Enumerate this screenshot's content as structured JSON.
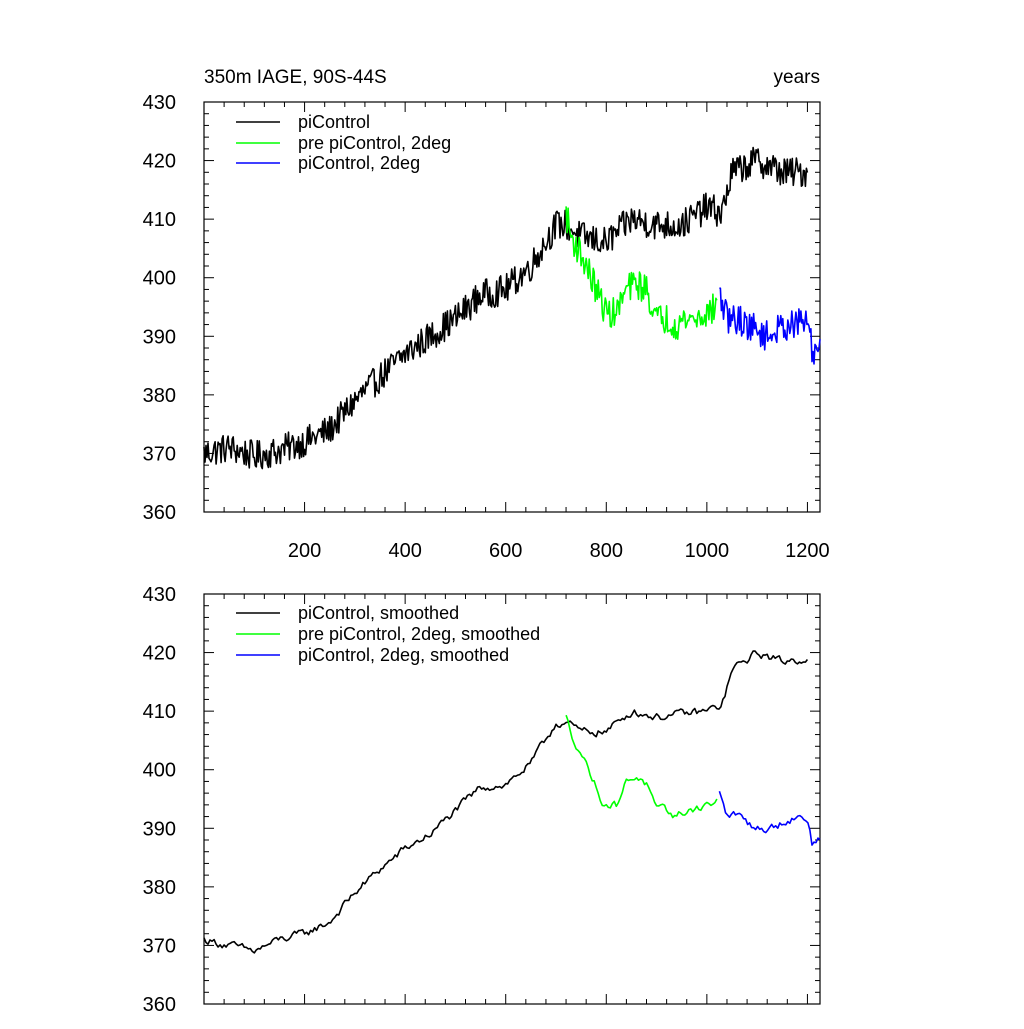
{
  "chart_data": [
    {
      "type": "line",
      "title": "350m IAGE, 90S-44S",
      "right_title": "years",
      "xlabel": "",
      "ylabel": "",
      "xlim": [
        0,
        1225
      ],
      "ylim": [
        360,
        430
      ],
      "yticks": [
        360,
        370,
        380,
        390,
        400,
        410,
        420,
        430
      ],
      "ytick_labels": [
        "360",
        "370",
        "380",
        "390",
        "400",
        "410",
        "420",
        "430"
      ],
      "xticks": [
        200,
        400,
        600,
        800,
        1000,
        1200
      ],
      "xtick_labels": [
        "200",
        "400",
        "600",
        "800",
        "1000",
        "1200"
      ],
      "legend_position": "top-left",
      "smoothed": false,
      "series": [
        {
          "name": "piControl",
          "color": "#000000",
          "x": [
            0,
            50,
            100,
            150,
            200,
            250,
            300,
            350,
            400,
            450,
            500,
            550,
            600,
            650,
            700,
            720,
            750,
            800,
            850,
            900,
            950,
            1000,
            1030,
            1050,
            1100,
            1150,
            1200
          ],
          "values": [
            370,
            371,
            369.5,
            370.5,
            372,
            374,
            379,
            383,
            387,
            390,
            393,
            397,
            398,
            402,
            409,
            409,
            407,
            406,
            410,
            409,
            409,
            412,
            411,
            418,
            420,
            418,
            418
          ]
        },
        {
          "name": "pre piControl, 2deg",
          "color": "#00ff00",
          "x": [
            720,
            730,
            750,
            770,
            790,
            800,
            820,
            840,
            860,
            880,
            900,
            920,
            940,
            960,
            980,
            1000,
            1020
          ],
          "values": [
            411,
            407,
            404,
            400,
            396,
            394,
            394,
            398,
            399,
            398,
            393,
            393,
            392,
            393,
            393,
            394,
            395
          ]
        },
        {
          "name": "piControl, 2deg",
          "color": "#0000ff",
          "x": [
            1025,
            1040,
            1060,
            1080,
            1100,
            1120,
            1140,
            1160,
            1180,
            1200,
            1210,
            1225
          ],
          "values": [
            397,
            393,
            393,
            392,
            391,
            390,
            391,
            392,
            392,
            393,
            387,
            389
          ]
        }
      ]
    },
    {
      "type": "line",
      "title": "",
      "xlabel": "",
      "ylabel": "",
      "xlim": [
        0,
        1225
      ],
      "ylim": [
        360,
        430
      ],
      "yticks": [
        360,
        370,
        380,
        390,
        400,
        410,
        420,
        430
      ],
      "ytick_labels": [
        "360",
        "370",
        "380",
        "390",
        "400",
        "410",
        "420",
        "430"
      ],
      "xticks": [
        200,
        400,
        600,
        800,
        1000,
        1200
      ],
      "xtick_labels": [],
      "legend_position": "top-left",
      "smoothed": true,
      "series": [
        {
          "name": "piControl, smoothed",
          "color": "#000000",
          "x": [
            0,
            50,
            100,
            150,
            200,
            250,
            300,
            350,
            400,
            450,
            500,
            550,
            600,
            650,
            700,
            720,
            750,
            800,
            850,
            900,
            950,
            1000,
            1030,
            1050,
            1100,
            1150,
            1200
          ],
          "values": [
            371,
            370,
            369,
            371,
            372,
            374,
            379,
            383,
            386.5,
            389,
            393,
            397,
            397.5,
            401,
            408,
            408,
            406.5,
            406.5,
            410,
            409,
            409.5,
            410,
            411,
            417,
            420,
            418.5,
            419
          ]
        },
        {
          "name": "pre piControl, 2deg, smoothed",
          "color": "#00ff00",
          "x": [
            720,
            730,
            750,
            770,
            790,
            800,
            820,
            840,
            860,
            880,
            900,
            920,
            940,
            960,
            980,
            1000,
            1020
          ],
          "values": [
            409,
            406,
            403,
            399,
            395,
            394,
            394,
            398,
            399,
            397.5,
            393,
            393,
            392,
            393,
            393.5,
            394,
            394.5
          ]
        },
        {
          "name": "piControl, 2deg, smoothed",
          "color": "#0000ff",
          "x": [
            1025,
            1040,
            1060,
            1080,
            1100,
            1120,
            1140,
            1160,
            1180,
            1200,
            1210,
            1225
          ],
          "values": [
            396,
            392,
            392.5,
            391,
            390,
            390,
            390.5,
            391.5,
            392,
            392,
            387,
            388.5
          ]
        }
      ]
    }
  ]
}
